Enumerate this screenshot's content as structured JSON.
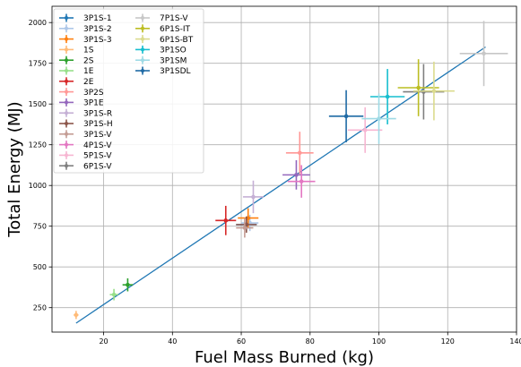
{
  "chart_data": {
    "type": "scatter",
    "title": "",
    "xlabel": "Fuel Mass Burned (kg)",
    "ylabel": "Total Energy (MJ)",
    "xlim": [
      5,
      140
    ],
    "ylim": [
      100,
      2100
    ],
    "x_ticks": [
      20,
      40,
      60,
      80,
      100,
      120,
      140
    ],
    "y_ticks": [
      250,
      500,
      750,
      1000,
      1250,
      1500,
      1750,
      2000
    ],
    "grid": true,
    "legend_position": "top-left",
    "fit_line": {
      "color": "#1f77b4",
      "x": [
        12,
        131
      ],
      "y": [
        155,
        1850
      ]
    },
    "series": [
      {
        "name": "3P1S-1",
        "color": "#1f77b4",
        "x": 61.5,
        "y": 760,
        "xerr": 3,
        "yerr": 40
      },
      {
        "name": "3P1S-2",
        "color": "#aec7e8",
        "x": 62.5,
        "y": 770,
        "xerr": 2.5,
        "yerr": 50
      },
      {
        "name": "3P1S-3",
        "color": "#ff7f0e",
        "x": 62,
        "y": 800,
        "xerr": 3,
        "yerr": 60
      },
      {
        "name": "1S",
        "color": "#ffbb78",
        "x": 12,
        "y": 205,
        "xerr": 0.7,
        "yerr": 25
      },
      {
        "name": "2S",
        "color": "#2ca02c",
        "x": 27,
        "y": 390,
        "xerr": 1.5,
        "yerr": 40
      },
      {
        "name": "1E",
        "color": "#98df8a",
        "x": 23,
        "y": 330,
        "xerr": 1.2,
        "yerr": 35
      },
      {
        "name": "2E",
        "color": "#d62728",
        "x": 55.5,
        "y": 785,
        "xerr": 3,
        "yerr": 90
      },
      {
        "name": "3P2S",
        "color": "#ff9896",
        "x": 77,
        "y": 1200,
        "xerr": 4,
        "yerr": 130
      },
      {
        "name": "3P1E",
        "color": "#9467bd",
        "x": 76,
        "y": 1065,
        "xerr": 4,
        "yerr": 90
      },
      {
        "name": "3P1S-R",
        "color": "#c5b0d5",
        "x": 63.5,
        "y": 930,
        "xerr": 3,
        "yerr": 100
      },
      {
        "name": "3P1S-H",
        "color": "#8c564b",
        "x": 61.5,
        "y": 760,
        "xerr": 3,
        "yerr": 50
      },
      {
        "name": "3P1S-V",
        "color": "#c49c94",
        "x": 61,
        "y": 740,
        "xerr": 2.5,
        "yerr": 60
      },
      {
        "name": "4P1S-V",
        "color": "#e377c2",
        "x": 77.5,
        "y": 1025,
        "xerr": 4,
        "yerr": 100
      },
      {
        "name": "5P1S-V",
        "color": "#f7b6d2",
        "x": 96,
        "y": 1340,
        "xerr": 5,
        "yerr": 140
      },
      {
        "name": "6P1S-V",
        "color": "#7f7f7f",
        "x": 113,
        "y": 1575,
        "xerr": 6,
        "yerr": 170
      },
      {
        "name": "7P1S-V",
        "color": "#c7c7c7",
        "x": 130.5,
        "y": 1810,
        "xerr": 7,
        "yerr": 200
      },
      {
        "name": "6P1S-IT",
        "color": "#bcbd22",
        "x": 111.5,
        "y": 1600,
        "xerr": 6,
        "yerr": 175
      },
      {
        "name": "6P1S-BT",
        "color": "#dbdb8d",
        "x": 116,
        "y": 1580,
        "xerr": 6,
        "yerr": 180
      },
      {
        "name": "3P1SO",
        "color": "#17becf",
        "x": 102.5,
        "y": 1545,
        "xerr": 5,
        "yerr": 170
      },
      {
        "name": "3P1SM",
        "color": "#9edae5",
        "x": 100,
        "y": 1410,
        "xerr": 5,
        "yerr": 155
      },
      {
        "name": "3P1SDL",
        "color": "#1f6aa5",
        "x": 90.5,
        "y": 1425,
        "xerr": 5,
        "yerr": 160
      }
    ]
  }
}
